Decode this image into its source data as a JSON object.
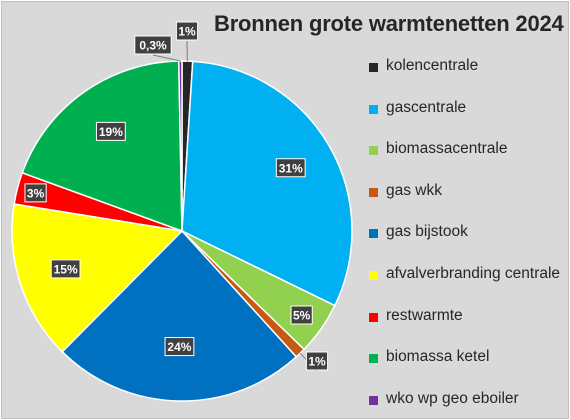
{
  "chart_data": {
    "type": "pie",
    "title": "Bronnen grote warmtenetten 2024",
    "legend_position": "right",
    "series": [
      {
        "name": "kolencentrale",
        "value": 1,
        "label": "1%",
        "color": "#262626"
      },
      {
        "name": "gascentrale",
        "value": 31,
        "label": "31%",
        "color": "#00b0f0"
      },
      {
        "name": "biomassacentrale",
        "value": 5,
        "label": "5%",
        "color": "#92d050"
      },
      {
        "name": "gas wkk",
        "value": 1,
        "label": "1%",
        "color": "#c55a11"
      },
      {
        "name": "gas bijstook",
        "value": 24,
        "label": "24%",
        "color": "#0070c0"
      },
      {
        "name": "afvalverbranding centrale",
        "value": 15,
        "label": "15%",
        "color": "#ffff00"
      },
      {
        "name": "restwarmte",
        "value": 3,
        "label": "3%",
        "color": "#ff0000"
      },
      {
        "name": "biomassa ketel",
        "value": 19,
        "label": "19%",
        "color": "#00b050"
      },
      {
        "name": "wko wp geo eboiler",
        "value": 0.3,
        "label": "0,3%",
        "color": "#7030a0"
      }
    ]
  }
}
